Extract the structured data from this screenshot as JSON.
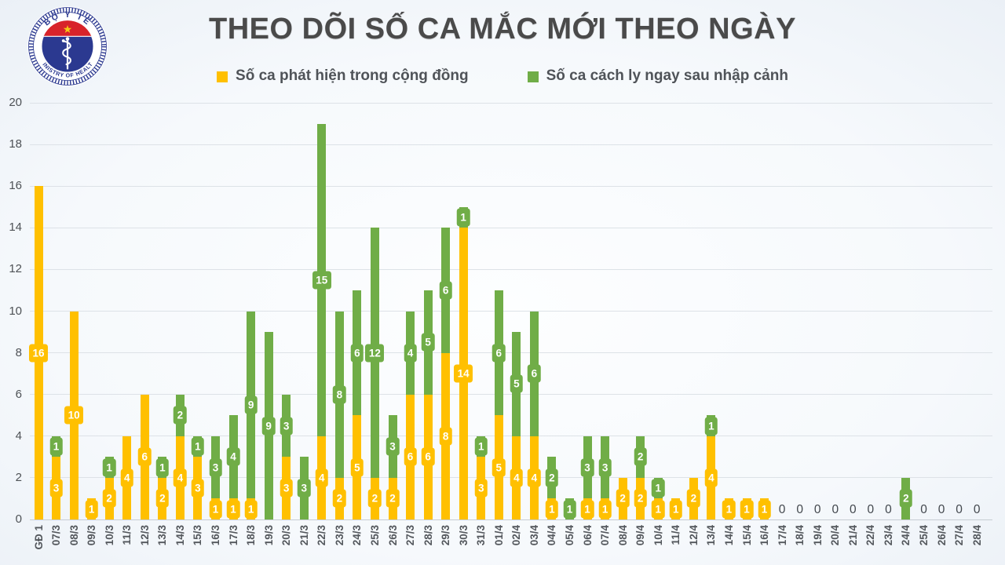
{
  "header": {
    "title": "THEO DÕI SỐ CA MẮC MỚI THEO NGÀY",
    "logo": {
      "top_text": "BỘ Y TẾ",
      "bottom_text": "MINISTRY OF HEALTH",
      "navy": "#2b3990",
      "red": "#d8232a",
      "star": "#f5c915"
    }
  },
  "legend": [
    {
      "label": "Số ca phát hiện trong cộng đồng",
      "color": "#FFC000"
    },
    {
      "label": "Số ca cách ly ngay sau nhập cảnh",
      "color": "#70AD47"
    }
  ],
  "chart_data": {
    "type": "bar",
    "stacked": true,
    "title": "THEO DÕI SỐ CA MẮC MỚI THEO NGÀY",
    "xlabel": "",
    "ylabel": "",
    "ylim": [
      0,
      20
    ],
    "yticks": [
      0,
      2,
      4,
      6,
      8,
      10,
      12,
      14,
      16,
      18,
      20
    ],
    "grid": "horizontal",
    "grid_color": "#dde2e7",
    "axis_line_color": "#c6ccd2",
    "legend_position": "top",
    "x_labels_rotation": 90,
    "zero_label": "0",
    "bar_value_labels": true,
    "categories": [
      "GĐ 1",
      "07/3",
      "08/3",
      "09/3",
      "10/3",
      "11/3",
      "12/3",
      "13/3",
      "14/3",
      "15/3",
      "16/3",
      "17/3",
      "18/3",
      "19/3",
      "20/3",
      "21/3",
      "22/3",
      "23/3",
      "24/3",
      "25/3",
      "26/3",
      "27/3",
      "28/3",
      "29/3",
      "30/3",
      "31/3",
      "01/4",
      "02/4",
      "03/4",
      "04/4",
      "05/4",
      "06/4",
      "07/4",
      "08/4",
      "09/4",
      "10/4",
      "11/4",
      "12/4",
      "13/4",
      "14/4",
      "15/4",
      "16/4",
      "17/4",
      "18/4",
      "19/4",
      "20/4",
      "21/4",
      "22/4",
      "23/4",
      "24/4",
      "25/4",
      "26/4",
      "27/4",
      "28/4"
    ],
    "series": [
      {
        "name": "Số ca phát hiện trong cộng đồng",
        "color": "#FFC000",
        "values": [
          16,
          3,
          10,
          1,
          2,
          4,
          6,
          2,
          4,
          3,
          1,
          1,
          1,
          0,
          3,
          0,
          4,
          2,
          5,
          2,
          2,
          6,
          6,
          8,
          14,
          3,
          5,
          4,
          4,
          1,
          0,
          1,
          1,
          2,
          2,
          1,
          1,
          2,
          4,
          1,
          1,
          1,
          0,
          0,
          0,
          0,
          0,
          0,
          0,
          0,
          0,
          0,
          0,
          0
        ]
      },
      {
        "name": "Số ca cách ly ngay sau nhập cảnh",
        "color": "#70AD47",
        "values": [
          0,
          1,
          0,
          0,
          1,
          0,
          0,
          1,
          2,
          1,
          3,
          4,
          9,
          9,
          3,
          3,
          15,
          8,
          6,
          12,
          3,
          4,
          5,
          6,
          1,
          1,
          6,
          5,
          6,
          2,
          1,
          3,
          3,
          0,
          2,
          1,
          0,
          0,
          1,
          0,
          0,
          0,
          0,
          0,
          0,
          0,
          0,
          0,
          0,
          2,
          0,
          0,
          0,
          0
        ]
      }
    ]
  }
}
